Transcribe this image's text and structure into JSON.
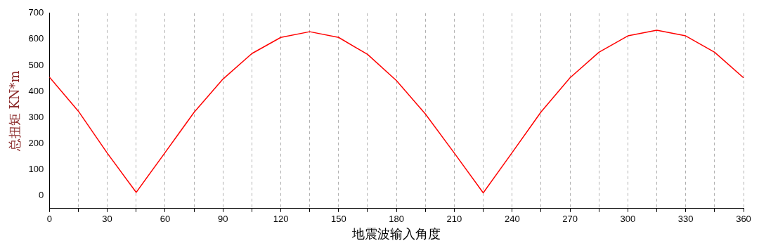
{
  "chart_data": {
    "type": "line",
    "xlabel": "地震波输入角度",
    "ylabel": "总扭矩 KN*m",
    "x": [
      0,
      15,
      30,
      45,
      60,
      75,
      90,
      105,
      120,
      135,
      150,
      165,
      180,
      195,
      210,
      225,
      240,
      255,
      270,
      285,
      300,
      315,
      330,
      345,
      360
    ],
    "series": [
      {
        "color": "#ff0000",
        "values": [
          455,
          324,
          163,
          12,
          165,
          319,
          447,
          545,
          607,
          629,
          607,
          542,
          441,
          313,
          163,
          10,
          165,
          321,
          452,
          550,
          613,
          635,
          613,
          550,
          452
        ]
      }
    ],
    "xlim": [
      0,
      360
    ],
    "xticks": [
      0,
      {
        "value": 15,
        "label": null
      },
      30,
      {
        "value": 45,
        "label": null
      },
      60,
      {
        "value": 75,
        "label": null
      },
      90,
      {
        "value": 105,
        "label": null
      },
      120,
      {
        "value": 135,
        "label": null
      },
      150,
      {
        "value": 165,
        "label": null
      },
      180,
      {
        "value": 195,
        "label": null
      },
      210,
      {
        "value": 225,
        "label": null
      },
      240,
      {
        "value": 255,
        "label": null
      },
      270,
      {
        "value": 285,
        "label": null
      },
      300,
      {
        "value": 315,
        "label": null
      },
      330,
      {
        "value": 345,
        "label": null
      },
      360
    ],
    "ylim": [
      -50,
      700
    ],
    "yticks": [
      0,
      100,
      200,
      300,
      400,
      500,
      600,
      700
    ],
    "grid": "x",
    "legend": false,
    "marker": "none",
    "line_style": "solid"
  }
}
